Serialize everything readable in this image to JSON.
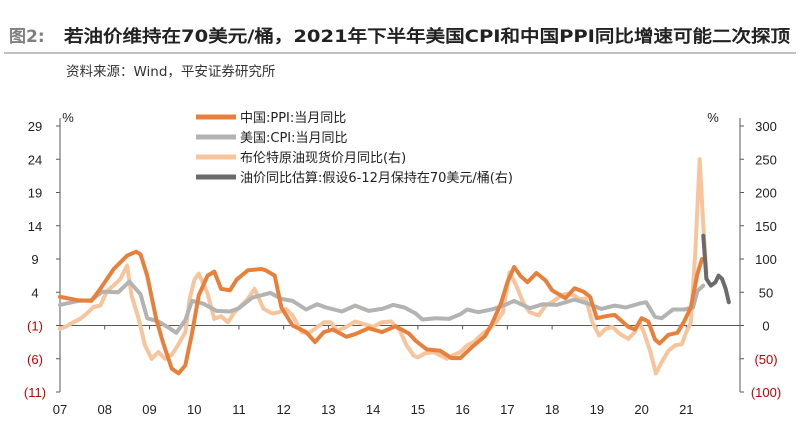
{
  "header": {
    "figure_label": "图2:",
    "title": "若油价维持在70美元/桶，2021年下半年美国CPI和中国PPI同比增速可能二次探顶",
    "source": "资料来源：Wind，平安证券研究所"
  },
  "chart_data": {
    "type": "line",
    "left_axis": {
      "unit": "%",
      "ylim": [
        -11,
        29
      ],
      "ticks": [
        29,
        24,
        19,
        14,
        9,
        4,
        -1,
        -6,
        -11
      ],
      "tick_labels": [
        "29",
        "24",
        "19",
        "14",
        "9",
        "4",
        "(1)",
        "(6)",
        "(11)"
      ]
    },
    "right_axis": {
      "unit": "%",
      "ylim": [
        -100,
        300
      ],
      "ticks": [
        300,
        250,
        200,
        150,
        100,
        50,
        0,
        -50,
        -100
      ],
      "tick_labels": [
        "300",
        "250",
        "200",
        "150",
        "100",
        "50",
        "0",
        "(50)",
        "(100)"
      ]
    },
    "x_axis": {
      "xlim": [
        2007.0,
        2022.2
      ],
      "ticks": [
        2007,
        2008,
        2009,
        2010,
        2011,
        2012,
        2013,
        2014,
        2015,
        2016,
        2017,
        2018,
        2019,
        2020,
        2021
      ],
      "tick_labels": [
        "07",
        "08",
        "09",
        "10",
        "11",
        "12",
        "13",
        "14",
        "15",
        "16",
        "17",
        "18",
        "19",
        "20",
        "21"
      ]
    },
    "legend_placement": "top-center",
    "zero_line_axis": "right",
    "series": [
      {
        "name": "中国:PPI:当月同比",
        "axis": "left",
        "color": "#e8803c",
        "width": 4,
        "points": [
          [
            2007.0,
            3.3
          ],
          [
            2007.4,
            2.8
          ],
          [
            2007.7,
            2.7
          ],
          [
            2007.9,
            4.5
          ],
          [
            2008.2,
            7.5
          ],
          [
            2008.5,
            9.5
          ],
          [
            2008.7,
            10.1
          ],
          [
            2008.8,
            9.7
          ],
          [
            2008.95,
            6.5
          ],
          [
            2009.15,
            0.0
          ],
          [
            2009.3,
            -3.5
          ],
          [
            2009.5,
            -7.5
          ],
          [
            2009.65,
            -8.2
          ],
          [
            2009.8,
            -7.0
          ],
          [
            2009.95,
            -2.2
          ],
          [
            2010.1,
            3.5
          ],
          [
            2010.3,
            6.5
          ],
          [
            2010.45,
            7.1
          ],
          [
            2010.6,
            4.5
          ],
          [
            2010.8,
            4.3
          ],
          [
            2010.95,
            5.9
          ],
          [
            2011.2,
            7.3
          ],
          [
            2011.5,
            7.5
          ],
          [
            2011.6,
            7.3
          ],
          [
            2011.8,
            6.5
          ],
          [
            2011.95,
            1.7
          ],
          [
            2012.2,
            -1.0
          ],
          [
            2012.5,
            -2.0
          ],
          [
            2012.7,
            -3.5
          ],
          [
            2012.9,
            -2.0
          ],
          [
            2013.1,
            -1.6
          ],
          [
            2013.4,
            -2.7
          ],
          [
            2013.6,
            -2.3
          ],
          [
            2013.9,
            -1.4
          ],
          [
            2014.2,
            -2.0
          ],
          [
            2014.5,
            -1.1
          ],
          [
            2014.8,
            -2.2
          ],
          [
            2014.95,
            -3.3
          ],
          [
            2015.2,
            -4.6
          ],
          [
            2015.5,
            -4.8
          ],
          [
            2015.75,
            -5.9
          ],
          [
            2015.95,
            -5.9
          ],
          [
            2016.2,
            -4.3
          ],
          [
            2016.5,
            -2.6
          ],
          [
            2016.65,
            -0.8
          ],
          [
            2016.85,
            2.2
          ],
          [
            2017.0,
            5.5
          ],
          [
            2017.15,
            7.8
          ],
          [
            2017.3,
            6.4
          ],
          [
            2017.45,
            5.5
          ],
          [
            2017.65,
            6.9
          ],
          [
            2017.85,
            5.8
          ],
          [
            2018.0,
            4.3
          ],
          [
            2018.3,
            3.1
          ],
          [
            2018.5,
            4.6
          ],
          [
            2018.7,
            4.1
          ],
          [
            2018.85,
            3.3
          ],
          [
            2019.0,
            0.1
          ],
          [
            2019.2,
            0.4
          ],
          [
            2019.4,
            0.6
          ],
          [
            2019.7,
            -1.2
          ],
          [
            2019.85,
            -1.6
          ],
          [
            2020.0,
            0.1
          ],
          [
            2020.15,
            -0.4
          ],
          [
            2020.3,
            -3.1
          ],
          [
            2020.4,
            -3.7
          ],
          [
            2020.6,
            -2.4
          ],
          [
            2020.8,
            -2.1
          ],
          [
            2020.95,
            -0.4
          ],
          [
            2021.1,
            1.7
          ],
          [
            2021.25,
            6.8
          ],
          [
            2021.35,
            9.0
          ]
        ]
      },
      {
        "name": "美国:CPI:当月同比",
        "axis": "left",
        "color": "#b3b3b3",
        "width": 4,
        "points": [
          [
            2007.0,
            2.1
          ],
          [
            2007.4,
            2.7
          ],
          [
            2007.7,
            2.8
          ],
          [
            2007.95,
            4.1
          ],
          [
            2008.3,
            4.0
          ],
          [
            2008.55,
            5.6
          ],
          [
            2008.8,
            3.7
          ],
          [
            2008.95,
            0.1
          ],
          [
            2009.2,
            -0.4
          ],
          [
            2009.45,
            -1.4
          ],
          [
            2009.6,
            -2.1
          ],
          [
            2009.8,
            -0.2
          ],
          [
            2009.95,
            2.7
          ],
          [
            2010.2,
            2.3
          ],
          [
            2010.5,
            1.2
          ],
          [
            2010.8,
            1.1
          ],
          [
            2011.0,
            1.6
          ],
          [
            2011.3,
            3.2
          ],
          [
            2011.7,
            3.9
          ],
          [
            2011.95,
            3.0
          ],
          [
            2012.2,
            2.7
          ],
          [
            2012.5,
            1.4
          ],
          [
            2012.75,
            2.2
          ],
          [
            2012.95,
            1.7
          ],
          [
            2013.3,
            1.1
          ],
          [
            2013.6,
            2.0
          ],
          [
            2013.9,
            1.2
          ],
          [
            2014.2,
            1.5
          ],
          [
            2014.45,
            2.1
          ],
          [
            2014.7,
            1.7
          ],
          [
            2014.95,
            0.8
          ],
          [
            2015.1,
            -0.1
          ],
          [
            2015.4,
            0.1
          ],
          [
            2015.7,
            0.0
          ],
          [
            2015.95,
            0.7
          ],
          [
            2016.1,
            1.4
          ],
          [
            2016.35,
            1.0
          ],
          [
            2016.7,
            1.5
          ],
          [
            2016.95,
            2.1
          ],
          [
            2017.15,
            2.7
          ],
          [
            2017.5,
            1.6
          ],
          [
            2017.8,
            2.2
          ],
          [
            2018.1,
            2.1
          ],
          [
            2018.5,
            2.9
          ],
          [
            2018.8,
            2.3
          ],
          [
            2018.95,
            1.9
          ],
          [
            2019.1,
            1.5
          ],
          [
            2019.4,
            2.0
          ],
          [
            2019.65,
            1.7
          ],
          [
            2019.95,
            2.3
          ],
          [
            2020.1,
            2.5
          ],
          [
            2020.3,
            0.3
          ],
          [
            2020.45,
            0.1
          ],
          [
            2020.7,
            1.4
          ],
          [
            2020.95,
            1.4
          ],
          [
            2021.15,
            1.7
          ],
          [
            2021.25,
            4.2
          ],
          [
            2021.38,
            5.0
          ]
        ]
      },
      {
        "name": "布伦特原油现货价月同比(右)",
        "axis": "right",
        "color": "#f7c49c",
        "width": 4,
        "points": [
          [
            2007.0,
            -5
          ],
          [
            2007.15,
            -1
          ],
          [
            2007.3,
            5
          ],
          [
            2007.45,
            10
          ],
          [
            2007.6,
            18
          ],
          [
            2007.75,
            28
          ],
          [
            2007.9,
            30
          ],
          [
            2008.05,
            52
          ],
          [
            2008.2,
            60
          ],
          [
            2008.35,
            70
          ],
          [
            2008.5,
            90
          ],
          [
            2008.6,
            45
          ],
          [
            2008.75,
            12
          ],
          [
            2008.9,
            -30
          ],
          [
            2009.05,
            -50
          ],
          [
            2009.2,
            -40
          ],
          [
            2009.35,
            -50
          ],
          [
            2009.5,
            -44
          ],
          [
            2009.65,
            -28
          ],
          [
            2009.8,
            -10
          ],
          [
            2009.9,
            40
          ],
          [
            2010.0,
            68
          ],
          [
            2010.1,
            78
          ],
          [
            2010.3,
            48
          ],
          [
            2010.45,
            10
          ],
          [
            2010.6,
            14
          ],
          [
            2010.75,
            5
          ],
          [
            2010.9,
            20
          ],
          [
            2011.05,
            30
          ],
          [
            2011.2,
            40
          ],
          [
            2011.35,
            55
          ],
          [
            2011.55,
            25
          ],
          [
            2011.75,
            18
          ],
          [
            2011.9,
            20
          ],
          [
            2012.05,
            25
          ],
          [
            2012.2,
            15
          ],
          [
            2012.4,
            -10
          ],
          [
            2012.55,
            -12
          ],
          [
            2012.7,
            -5
          ],
          [
            2012.9,
            5
          ],
          [
            2013.05,
            5
          ],
          [
            2013.2,
            -8
          ],
          [
            2013.4,
            -2
          ],
          [
            2013.6,
            6
          ],
          [
            2013.8,
            2
          ],
          [
            2014.0,
            -2
          ],
          [
            2014.2,
            5
          ],
          [
            2014.4,
            6
          ],
          [
            2014.6,
            -8
          ],
          [
            2014.75,
            -30
          ],
          [
            2014.9,
            -45
          ],
          [
            2015.0,
            -48
          ],
          [
            2015.15,
            -42
          ],
          [
            2015.35,
            -40
          ],
          [
            2015.5,
            -45
          ],
          [
            2015.65,
            -50
          ],
          [
            2015.8,
            -44
          ],
          [
            2015.95,
            -40
          ],
          [
            2016.1,
            -30
          ],
          [
            2016.25,
            -25
          ],
          [
            2016.45,
            -12
          ],
          [
            2016.6,
            -5
          ],
          [
            2016.75,
            5
          ],
          [
            2016.9,
            20
          ],
          [
            2017.05,
            80
          ],
          [
            2017.2,
            60
          ],
          [
            2017.35,
            35
          ],
          [
            2017.5,
            20
          ],
          [
            2017.7,
            15
          ],
          [
            2017.85,
            30
          ],
          [
            2018.0,
            35
          ],
          [
            2018.2,
            45
          ],
          [
            2018.35,
            48
          ],
          [
            2018.5,
            45
          ],
          [
            2018.6,
            40
          ],
          [
            2018.75,
            40
          ],
          [
            2018.9,
            5
          ],
          [
            2019.05,
            -15
          ],
          [
            2019.2,
            -5
          ],
          [
            2019.35,
            -2
          ],
          [
            2019.5,
            -12
          ],
          [
            2019.7,
            -20
          ],
          [
            2019.85,
            -10
          ],
          [
            2019.95,
            5
          ],
          [
            2020.05,
            -10
          ],
          [
            2020.2,
            -40
          ],
          [
            2020.32,
            -72
          ],
          [
            2020.45,
            -55
          ],
          [
            2020.6,
            -38
          ],
          [
            2020.75,
            -30
          ],
          [
            2020.9,
            -28
          ],
          [
            2021.0,
            -10
          ],
          [
            2021.1,
            5
          ],
          [
            2021.2,
            110
          ],
          [
            2021.3,
            250
          ],
          [
            2021.38,
            150
          ],
          [
            2021.45,
            80
          ]
        ]
      },
      {
        "name": "油价同比估算:假设6-12月保持在70美元/桶(右)",
        "axis": "right",
        "color": "#6b6b6b",
        "width": 4,
        "points": [
          [
            2021.38,
            135
          ],
          [
            2021.45,
            70
          ],
          [
            2021.55,
            60
          ],
          [
            2021.65,
            65
          ],
          [
            2021.72,
            75
          ],
          [
            2021.8,
            70
          ],
          [
            2021.88,
            55
          ],
          [
            2021.95,
            35
          ]
        ]
      }
    ]
  }
}
